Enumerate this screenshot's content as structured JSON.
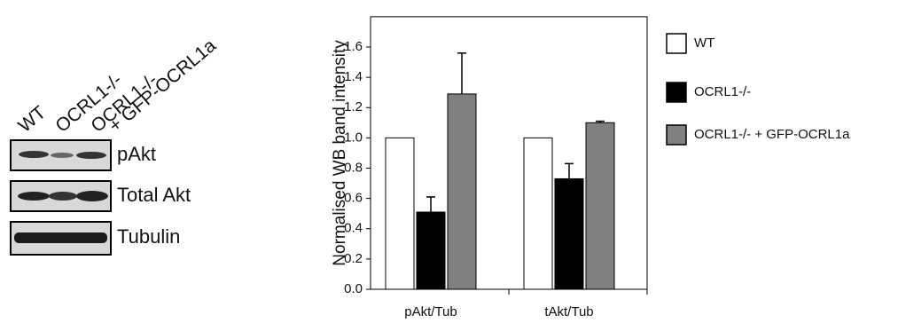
{
  "blot": {
    "lanes": [
      [
        "WT"
      ],
      [
        "OCRL1-/-"
      ],
      [
        "OCRL1-/-",
        "+ GFP-OCRL1a"
      ]
    ],
    "rows": [
      "pAkt",
      "Total Akt",
      "Tubulin"
    ]
  },
  "chart_data": {
    "type": "bar",
    "y_label": "Normalised WB band intensity",
    "categories": [
      "pAkt/Tub",
      "tAkt/Tub"
    ],
    "series": [
      {
        "name": "WT",
        "color": "#ffffff",
        "values": [
          1.0,
          1.0
        ]
      },
      {
        "name": "OCRL1-/-",
        "color": "#000000",
        "values": [
          0.51,
          0.73
        ],
        "errors": [
          0.1,
          0.1
        ]
      },
      {
        "name": "OCRL1-/- + GFP-OCRL1a",
        "color": "#808080",
        "values": [
          1.29,
          1.1
        ],
        "errors": [
          0.27,
          0.01
        ]
      }
    ],
    "ylim": [
      0,
      1.8
    ],
    "yticks": [
      {
        "value": 0,
        "label": "0.0"
      },
      0.2,
      0.4,
      0.6,
      0.8,
      {
        "value": 1,
        "label": "1.0"
      },
      1.2,
      1.4,
      1.6
    ],
    "grid": false
  }
}
